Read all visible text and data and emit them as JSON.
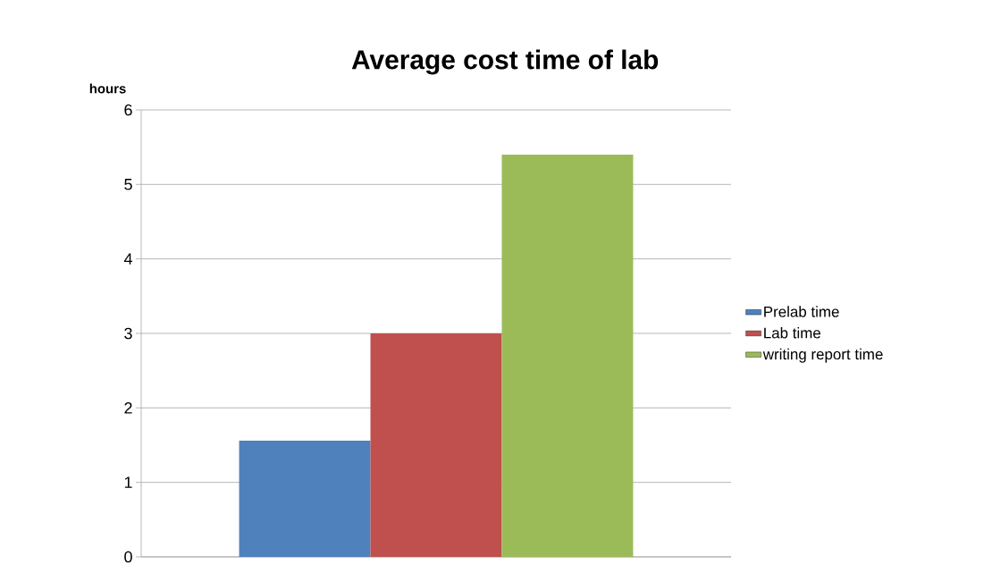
{
  "chart_data": {
    "type": "bar",
    "title": "Average cost time of lab",
    "ylabel": "hours",
    "categories": [
      null
    ],
    "series": [
      {
        "name": "Prelab time",
        "color": "#4f81bd",
        "values": [
          1.56
        ]
      },
      {
        "name": "Lab time",
        "color": "#c0504d",
        "values": [
          3.0
        ]
      },
      {
        "name": "writing report time",
        "color": "#9bbb59",
        "values": [
          5.4
        ]
      }
    ],
    "ylim": [
      0,
      6
    ],
    "yticks": [
      0,
      1,
      2,
      3,
      4,
      5,
      6
    ],
    "grid": "y",
    "legend": "right"
  }
}
